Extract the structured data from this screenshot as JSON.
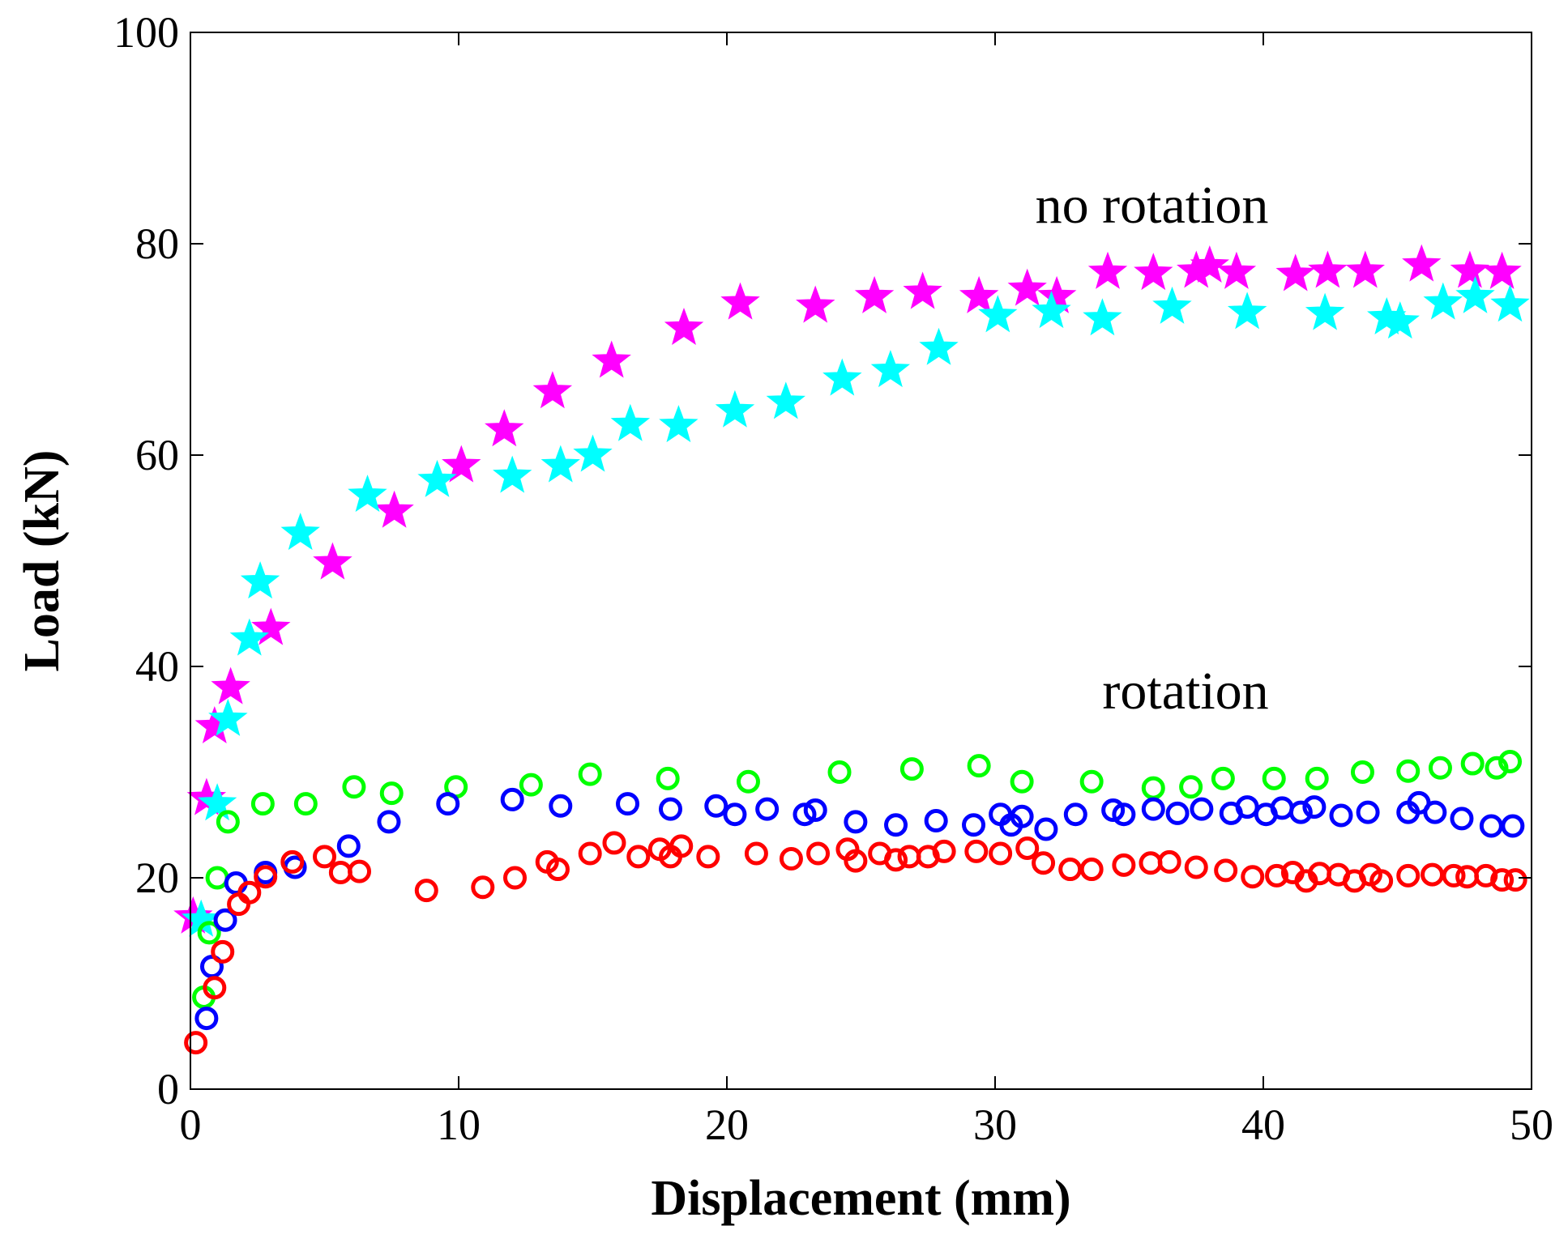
{
  "chart_data": {
    "type": "scatter",
    "title": "",
    "xlabel": "Displacement (mm)",
    "ylabel": "Load (kN)",
    "xlim": [
      0,
      50
    ],
    "ylim": [
      0,
      100
    ],
    "xticks": [
      0,
      10,
      20,
      30,
      40,
      50
    ],
    "yticks": [
      0,
      20,
      40,
      60,
      80,
      100
    ],
    "grid": false,
    "annotations": [
      {
        "name": "annotation-no-rotation",
        "text": "no rotation",
        "x": 31.5,
        "y": 82
      },
      {
        "name": "annotation-rotation",
        "text": "rotation",
        "x": 34,
        "y": 36
      }
    ],
    "series": [
      {
        "name": "no rotation (magenta stars)",
        "marker": "star",
        "color": "#ff00ff",
        "x": [
          0.1,
          0.6,
          0.9,
          1.5,
          3.0,
          5.3,
          7.6,
          10.1,
          11.7,
          13.5,
          15.7,
          18.4,
          20.5,
          23.3,
          25.5,
          27.3,
          29.4,
          31.2,
          32.3,
          34.2,
          35.9,
          37.5,
          38.0,
          39.0,
          41.2,
          42.4,
          43.8,
          45.9,
          47.7,
          48.9
        ],
        "y": [
          16.3,
          27.5,
          34.3,
          38.0,
          43.6,
          49.8,
          54.7,
          59.0,
          62.4,
          66.0,
          68.9,
          72.0,
          74.4,
          74.1,
          75.0,
          75.4,
          75.0,
          75.7,
          75.0,
          77.3,
          77.2,
          77.4,
          77.9,
          77.3,
          77.1,
          77.4,
          77.4,
          78.0,
          77.4,
          77.3
        ]
      },
      {
        "name": "no rotation (cyan stars)",
        "marker": "star",
        "color": "#00ffff",
        "x": [
          0.4,
          1.0,
          1.4,
          2.2,
          2.6,
          4.1,
          6.6,
          9.2,
          12.0,
          13.8,
          15.0,
          16.4,
          18.2,
          20.3,
          22.2,
          24.3,
          26.1,
          27.9,
          30.1,
          32.1,
          34.0,
          36.6,
          39.4,
          42.3,
          44.6,
          45.1,
          46.7,
          47.9,
          49.2
        ],
        "y": [
          16.0,
          27.0,
          35.0,
          42.6,
          48.0,
          52.6,
          56.2,
          57.6,
          58.0,
          59.0,
          60.0,
          62.9,
          62.8,
          64.2,
          65.0,
          67.2,
          68.0,
          70.1,
          73.2,
          73.6,
          72.9,
          74.0,
          73.5,
          73.4,
          73.0,
          72.6,
          74.4,
          75.0,
          74.2
        ]
      },
      {
        "name": "rotation (green circles)",
        "marker": "circle",
        "color": "#00ff00",
        "x": [
          0.5,
          0.7,
          1.0,
          1.4,
          2.7,
          4.3,
          6.1,
          7.5,
          9.9,
          12.7,
          14.9,
          17.8,
          20.8,
          24.2,
          26.9,
          29.4,
          31.0,
          33.6,
          35.9,
          37.3,
          38.5,
          40.4,
          42.0,
          43.7,
          45.4,
          46.6,
          47.8,
          48.7,
          49.2
        ],
        "y": [
          8.7,
          14.8,
          20.0,
          25.3,
          27.0,
          27.0,
          28.6,
          28.0,
          28.6,
          28.8,
          29.8,
          29.4,
          29.1,
          30.0,
          30.3,
          30.6,
          29.1,
          29.1,
          28.5,
          28.6,
          29.4,
          29.4,
          29.4,
          30.0,
          30.1,
          30.4,
          30.8,
          30.4,
          31.0
        ]
      },
      {
        "name": "rotation (blue circles)",
        "marker": "circle",
        "color": "#0000ff",
        "x": [
          0.6,
          0.8,
          1.3,
          1.7,
          2.8,
          3.9,
          5.9,
          7.4,
          9.6,
          12.0,
          13.8,
          16.3,
          17.9,
          19.6,
          20.3,
          21.5,
          22.9,
          23.3,
          24.8,
          26.3,
          27.8,
          29.2,
          30.2,
          30.6,
          31.0,
          31.9,
          33.0,
          34.4,
          34.8,
          35.9,
          36.8,
          37.7,
          38.8,
          39.4,
          40.1,
          40.7,
          41.4,
          41.9,
          42.9,
          43.9,
          45.4,
          45.8,
          46.4,
          47.4,
          48.5,
          49.3
        ],
        "y": [
          6.7,
          11.6,
          16.0,
          19.5,
          20.5,
          21.0,
          23.0,
          25.3,
          27.0,
          27.4,
          26.8,
          27.0,
          26.5,
          26.8,
          26.0,
          26.5,
          26.0,
          26.4,
          25.3,
          25.0,
          25.4,
          25.0,
          26.0,
          25.0,
          25.8,
          24.6,
          26.0,
          26.4,
          26.0,
          26.5,
          26.1,
          26.5,
          26.1,
          26.7,
          26.0,
          26.6,
          26.2,
          26.7,
          25.9,
          26.2,
          26.2,
          27.1,
          26.2,
          25.6,
          24.9,
          24.9
        ]
      },
      {
        "name": "rotation (red circles)",
        "marker": "circle",
        "color": "#ff0000",
        "x": [
          0.2,
          0.9,
          1.2,
          1.8,
          2.2,
          2.8,
          3.8,
          5.0,
          5.6,
          6.3,
          8.8,
          10.9,
          12.1,
          13.3,
          13.7,
          14.9,
          15.8,
          16.7,
          17.5,
          17.9,
          18.3,
          19.3,
          21.1,
          22.4,
          23.4,
          24.5,
          24.8,
          25.7,
          26.3,
          26.8,
          27.5,
          28.1,
          29.3,
          30.2,
          31.2,
          31.8,
          32.8,
          33.6,
          34.8,
          35.8,
          36.5,
          37.5,
          38.6,
          39.6,
          40.5,
          41.1,
          41.6,
          42.1,
          42.8,
          43.4,
          44.0,
          44.4,
          45.4,
          46.3,
          47.1,
          47.6,
          48.3,
          48.9,
          49.4
        ],
        "y": [
          4.4,
          9.6,
          13.0,
          17.5,
          18.6,
          20.1,
          21.5,
          22.0,
          20.5,
          20.6,
          18.8,
          19.1,
          20.0,
          21.5,
          20.8,
          22.3,
          23.3,
          22.0,
          22.7,
          22.0,
          23.0,
          22.0,
          22.3,
          21.8,
          22.3,
          22.7,
          21.6,
          22.3,
          21.7,
          22.0,
          22.0,
          22.5,
          22.5,
          22.3,
          22.8,
          21.4,
          20.8,
          20.8,
          21.2,
          21.4,
          21.5,
          21.0,
          20.7,
          20.1,
          20.2,
          20.5,
          19.7,
          20.4,
          20.3,
          19.7,
          20.3,
          19.7,
          20.2,
          20.3,
          20.2,
          20.1,
          20.2,
          19.8,
          19.8
        ]
      }
    ]
  }
}
